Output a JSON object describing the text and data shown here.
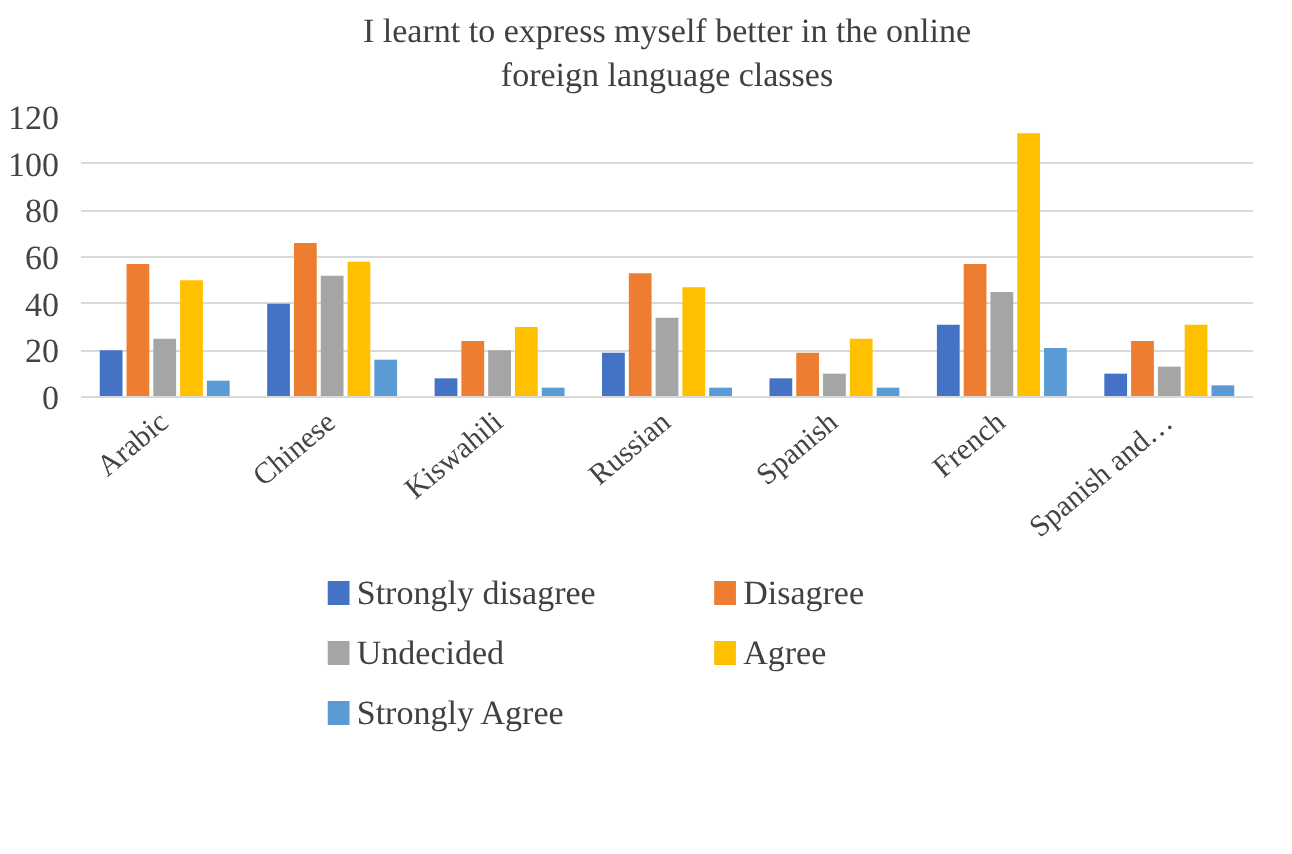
{
  "chart_data": {
    "type": "bar",
    "title": "I learnt to express myself better in the online\nforeign language classes",
    "categories": [
      "Arabic",
      "Chinese",
      "Kiswahili",
      "Russian",
      "Spanish",
      "French",
      "Spanish and…"
    ],
    "series": [
      {
        "name": "Strongly disagree",
        "color": "#4472c4",
        "values": [
          20,
          40,
          8,
          19,
          8,
          31,
          10
        ]
      },
      {
        "name": "Disagree",
        "color": "#ed7d31",
        "values": [
          57,
          66,
          24,
          53,
          19,
          57,
          24
        ]
      },
      {
        "name": "Undecided",
        "color": "#a5a5a5",
        "values": [
          25,
          52,
          20,
          34,
          10,
          45,
          13
        ]
      },
      {
        "name": "Agree",
        "color": "#ffc000",
        "values": [
          50,
          58,
          30,
          47,
          25,
          113,
          31
        ]
      },
      {
        "name": "Strongly Agree",
        "color": "#5b9bd5",
        "values": [
          7,
          16,
          4,
          4,
          4,
          21,
          5
        ]
      }
    ],
    "ylim": [
      0,
      120
    ],
    "yticks": [
      0,
      20,
      40,
      60,
      80,
      100,
      120
    ],
    "grid": "y",
    "legend": "bottom"
  }
}
